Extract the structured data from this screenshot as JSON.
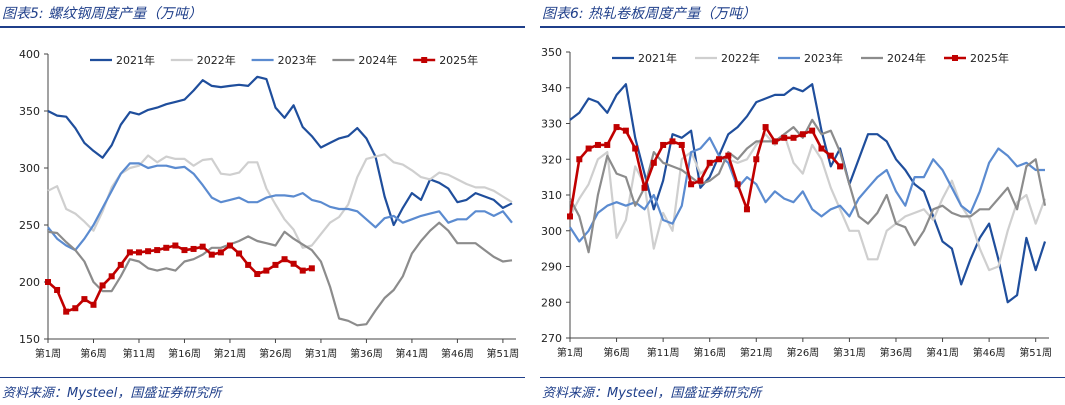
{
  "figures": [
    {
      "title": "图表5:  螺纹钢周度产量（万吨）",
      "source": "资料来源：Mysteel，国盛证券研究所"
    },
    {
      "title": "图表6:  热轧卷板周度产量（万吨）",
      "source": "资料来源：Mysteel，国盛证券研究所"
    }
  ],
  "chart_data": [
    {
      "type": "line",
      "title": "螺纹钢周度产量（万吨）",
      "ylim": [
        150,
        400
      ],
      "yticks": [
        150,
        200,
        250,
        300,
        350,
        400
      ],
      "x_week_range": [
        1,
        52
      ],
      "x_tick_weeks": [
        1,
        6,
        11,
        16,
        21,
        26,
        31,
        36,
        41,
        46,
        51
      ],
      "x_tick_labels": [
        "第1周",
        "第6周",
        "第11周",
        "第16周",
        "第21周",
        "第26周",
        "第31周",
        "第36周",
        "第41周",
        "第46周",
        "第51周"
      ],
      "legend_position": "top",
      "series": [
        {
          "name": "2021年",
          "color": "#1f4e9c",
          "marker": false,
          "values": [
            350,
            346,
            345,
            335,
            322,
            315,
            309,
            320,
            338,
            349,
            347,
            351,
            353,
            356,
            358,
            360,
            368,
            377,
            372,
            371,
            372,
            373,
            372,
            380,
            378,
            353,
            344,
            355,
            336,
            328,
            318,
            322,
            326,
            328,
            335,
            326,
            310,
            275,
            250,
            265,
            278,
            272,
            290,
            287,
            282,
            270,
            272,
            278,
            275,
            272,
            265,
            269
          ]
        },
        {
          "name": "2022年",
          "color": "#cfcfcf",
          "marker": false,
          "values": [
            280,
            284,
            264,
            260,
            253,
            245,
            262,
            283,
            295,
            300,
            302,
            311,
            305,
            310,
            308,
            308,
            302,
            307,
            308,
            295,
            294,
            296,
            305,
            305,
            282,
            268,
            255,
            246,
            230,
            232,
            242,
            252,
            257,
            268,
            292,
            308,
            310,
            312,
            305,
            303,
            298,
            292,
            290,
            296,
            294,
            290,
            286,
            283,
            283,
            280,
            275,
            270
          ]
        },
        {
          "name": "2023年",
          "color": "#5b8bd0",
          "marker": false,
          "values": [
            248,
            238,
            232,
            228,
            238,
            250,
            265,
            280,
            295,
            304,
            304,
            300,
            302,
            302,
            300,
            301,
            295,
            285,
            274,
            270,
            272,
            274,
            270,
            270,
            274,
            276,
            276,
            275,
            278,
            272,
            270,
            266,
            264,
            264,
            262,
            255,
            248,
            256,
            258,
            252,
            255,
            258,
            260,
            262,
            252,
            255,
            255,
            262,
            262,
            258,
            262,
            252
          ]
        },
        {
          "name": "2024年",
          "color": "#8c8c8c",
          "marker": false,
          "values": [
            244,
            243,
            235,
            228,
            218,
            200,
            192,
            192,
            205,
            220,
            218,
            212,
            210,
            212,
            210,
            218,
            220,
            224,
            230,
            230,
            233,
            236,
            240,
            236,
            234,
            232,
            244,
            238,
            233,
            228,
            218,
            196,
            168,
            166,
            162,
            163,
            175,
            186,
            193,
            205,
            225,
            236,
            245,
            252,
            245,
            234,
            234,
            234,
            228,
            222,
            218,
            219
          ]
        },
        {
          "name": "2025年",
          "color": "#c00000",
          "marker": true,
          "values": [
            200,
            193,
            174,
            177,
            185,
            180,
            197,
            205,
            215,
            226,
            226,
            227,
            228,
            230,
            232,
            228,
            229,
            231,
            224,
            226,
            232,
            225,
            215,
            207,
            210,
            215,
            220,
            216,
            210,
            212
          ]
        }
      ]
    },
    {
      "type": "line",
      "title": "热轧卷板周度产量（万吨）",
      "ylim": [
        270,
        350
      ],
      "yticks": [
        270,
        280,
        290,
        300,
        310,
        320,
        330,
        340,
        350
      ],
      "x_week_range": [
        1,
        52
      ],
      "x_tick_weeks": [
        1,
        6,
        11,
        16,
        21,
        26,
        31,
        36,
        41,
        46,
        51
      ],
      "x_tick_labels": [
        "第1周",
        "第6周",
        "第11周",
        "第16周",
        "第21周",
        "第26周",
        "第31周",
        "第36周",
        "第41周",
        "第46周",
        "第51周"
      ],
      "legend_position": "top",
      "series": [
        {
          "name": "2021年",
          "color": "#1f4e9c",
          "marker": false,
          "values": [
            331,
            333,
            337,
            336,
            333,
            338,
            341,
            326,
            316,
            306,
            314,
            327,
            326,
            328,
            312,
            315,
            321,
            327,
            329,
            332,
            336,
            337,
            338,
            338,
            340,
            339,
            341,
            328,
            318,
            323,
            313,
            320,
            327,
            327,
            325,
            320,
            317,
            313,
            311,
            304,
            297,
            295,
            285,
            292,
            298,
            302,
            292,
            280,
            282,
            298,
            289,
            297
          ]
        },
        {
          "name": "2022年",
          "color": "#cfcfcf",
          "marker": false,
          "values": [
            304,
            309,
            313,
            320,
            322,
            298,
            303,
            318,
            313,
            295,
            305,
            300,
            320,
            322,
            316,
            318,
            321,
            320,
            319,
            320,
            324,
            327,
            324,
            327,
            319,
            316,
            324,
            320,
            312,
            306,
            300,
            300,
            292,
            292,
            300,
            302,
            304,
            305,
            306,
            303,
            309,
            314,
            307,
            303,
            295,
            289,
            290,
            300,
            308,
            310,
            302,
            309
          ]
        },
        {
          "name": "2023年",
          "color": "#5b8bd0",
          "marker": false,
          "values": [
            301,
            297,
            300,
            305,
            307,
            308,
            307,
            308,
            306,
            310,
            303,
            302,
            307,
            322,
            323,
            326,
            321,
            319,
            312,
            315,
            313,
            308,
            311,
            309,
            308,
            311,
            306,
            304,
            306,
            307,
            304,
            309,
            312,
            315,
            317,
            311,
            307,
            315,
            315,
            320,
            317,
            312,
            307,
            305,
            311,
            319,
            323,
            321,
            318,
            319,
            317,
            317
          ]
        },
        {
          "name": "2024年",
          "color": "#8c8c8c",
          "marker": false,
          "values": [
            309,
            304,
            294,
            310,
            321,
            316,
            315,
            307,
            312,
            322,
            319,
            318,
            317,
            315,
            313,
            314,
            316,
            322,
            320,
            323,
            325,
            325,
            325,
            327,
            329,
            326,
            331,
            327,
            328,
            322,
            313,
            304,
            302,
            305,
            310,
            302,
            301,
            296,
            300,
            306,
            307,
            305,
            304,
            304,
            306,
            306,
            309,
            312,
            306,
            318,
            320,
            307
          ]
        },
        {
          "name": "2025年",
          "color": "#c00000",
          "marker": true,
          "values": [
            304,
            320,
            323,
            324,
            324,
            329,
            328,
            323,
            312,
            319,
            324,
            325,
            324,
            313,
            314,
            319,
            320,
            321,
            313,
            306,
            320,
            329,
            325,
            326,
            326,
            327,
            328,
            323,
            321,
            318
          ]
        }
      ]
    }
  ]
}
